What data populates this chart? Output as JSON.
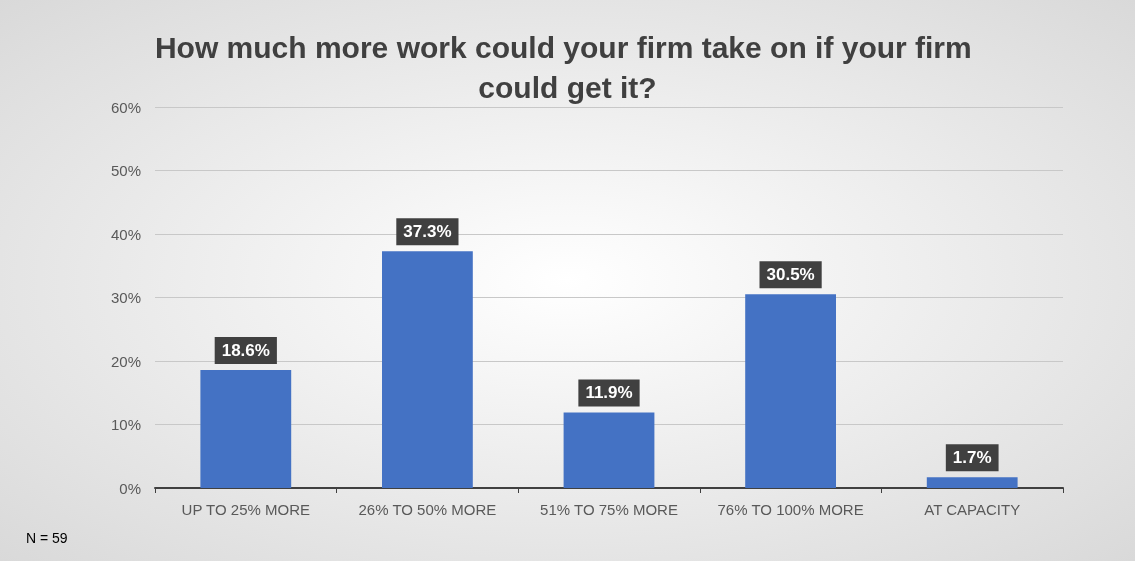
{
  "chart_data": {
    "type": "bar",
    "title": "How much more work could your firm take on if your firm could get it?",
    "categories": [
      "UP TO 25% MORE",
      "26% TO 50% MORE",
      "51% TO 75% MORE",
      "76% TO 100% MORE",
      "AT CAPACITY"
    ],
    "values": [
      18.6,
      37.3,
      11.9,
      30.5,
      1.7
    ],
    "value_labels": [
      "18.6%",
      "37.3%",
      "11.9%",
      "30.5%",
      "1.7%"
    ],
    "color": "#4472c4",
    "ylim": [
      0,
      60
    ],
    "yticks": [
      {
        "value": 0,
        "label": "0%"
      },
      {
        "value": 10,
        "label": "10%"
      },
      {
        "value": 20,
        "label": "20%"
      },
      {
        "value": 30,
        "label": "30%"
      },
      {
        "value": 40,
        "label": "40%"
      },
      {
        "value": 50,
        "label": "50%"
      },
      {
        "value": 60,
        "label": "60%"
      }
    ],
    "grid": "y",
    "annotations": [
      "N = 59"
    ]
  }
}
